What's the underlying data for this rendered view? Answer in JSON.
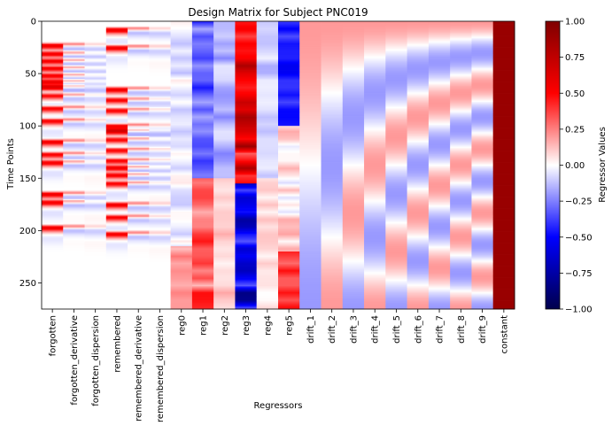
{
  "chart_data": {
    "type": "heatmap",
    "title": "Design Matrix for Subject PNC019",
    "xlabel": "Regressors",
    "ylabel": "Time Points",
    "columns": [
      "forgotten",
      "forgotten_derivative",
      "forgotten_dispersion",
      "remembered",
      "remembered_derivative",
      "remembered_dispersion",
      "reg0",
      "reg1",
      "reg2",
      "reg3",
      "reg4",
      "reg5",
      "drift_1",
      "drift_2",
      "drift_3",
      "drift_4",
      "drift_5",
      "drift_6",
      "drift_7",
      "drift_8",
      "drift_9",
      "constant"
    ],
    "y_ticks": [
      0,
      50,
      100,
      150,
      200,
      250
    ],
    "y_range": [
      0,
      275
    ],
    "n_timepoints": 275,
    "colormap": "seismic",
    "colormap_stops": [
      "#00004c",
      "#0000ff",
      "#ffffff",
      "#ff0000",
      "#7f0000"
    ],
    "value_range": [
      -1.0,
      1.0
    ],
    "colorbar": {
      "label": "Regressor Values",
      "ticks": [
        "1.00",
        "0.75",
        "0.50",
        "0.25",
        "0.00",
        "−0.25",
        "−0.50",
        "−0.75",
        "−1.00"
      ]
    },
    "forgotten_event_onsets": [
      18,
      26,
      33,
      40,
      47,
      53,
      58,
      66,
      78,
      90,
      110,
      122,
      130,
      160,
      168,
      192
    ],
    "remembered_event_onsets": [
      3,
      20,
      60,
      70,
      80,
      95,
      100,
      108,
      118,
      128,
      135,
      142,
      150,
      170,
      182,
      198
    ]
  }
}
